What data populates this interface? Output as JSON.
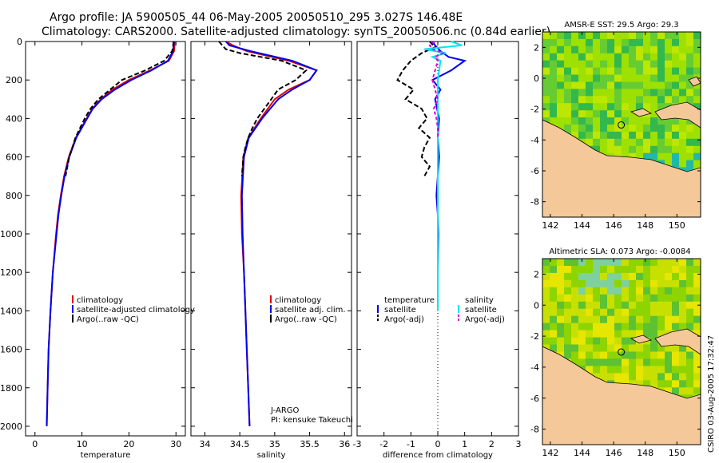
{
  "header": {
    "line1": "Argo profile: JA 5900505_44 06-May-2005 20050510_295 3.027S 146.48E",
    "line2": "Climatology: CARS2000. Satellite-adjusted climatology: synTS_20050506.nc (0.84d earlier)"
  },
  "colors": {
    "climatology": "#e00000",
    "satellite": "#0000ee",
    "argo": "#000000",
    "sal_satellite": "#00e5ee",
    "sal_argo": "#e000e0"
  },
  "chart_data": [
    {
      "type": "line",
      "id": "temperature-profile",
      "xlabel": "temperature",
      "ylabel": "",
      "xlim": [
        -2,
        32
      ],
      "ylim": [
        2050,
        0
      ],
      "xticks": [
        "0",
        "10",
        "20",
        "30"
      ],
      "yticks": [
        "0",
        "200",
        "400",
        "600",
        "800",
        "1000",
        "1200",
        "1400",
        "1600",
        "1800",
        "2000"
      ],
      "legend": [
        "climatology",
        "satellite-adjusted climatology",
        "Argo(..raw -QC)"
      ],
      "series": [
        {
          "name": "climatology",
          "depth": [
            0,
            20,
            50,
            100,
            150,
            200,
            250,
            300,
            350,
            400,
            500,
            600,
            700,
            800,
            900,
            1000,
            1200,
            1400,
            1600,
            1800,
            2000
          ],
          "values": [
            29.8,
            29.7,
            29.6,
            28.5,
            24.5,
            20,
            16.5,
            14,
            12.2,
            11,
            8.7,
            7.2,
            6.2,
            5.5,
            4.9,
            4.5,
            3.8,
            3.3,
            2.9,
            2.7,
            2.5
          ]
        },
        {
          "name": "satellite-adjusted climatology",
          "depth": [
            0,
            20,
            50,
            100,
            150,
            200,
            250,
            300,
            350,
            400,
            500,
            600,
            700,
            800,
            900,
            1000,
            1200,
            1400,
            1600,
            1800,
            2000
          ],
          "values": [
            29.6,
            29.5,
            29.4,
            28.3,
            24.8,
            20.5,
            17,
            14.2,
            12.3,
            11.1,
            8.8,
            7.3,
            6.3,
            5.6,
            5,
            4.6,
            3.8,
            3.3,
            2.9,
            2.7,
            2.5
          ]
        },
        {
          "name": "Argo(..raw -QC)",
          "depth": [
            0,
            20,
            50,
            100,
            150,
            200,
            250,
            300,
            350,
            400,
            450,
            500,
            550,
            600,
            650,
            700
          ],
          "values": [
            29.5,
            29.4,
            29.2,
            27.5,
            23.5,
            18.5,
            16,
            13.5,
            11.8,
            10.6,
            9.6,
            8.6,
            8,
            7.3,
            6.9,
            6.5
          ]
        }
      ]
    },
    {
      "type": "line",
      "id": "salinity-profile",
      "xlabel": "salinity",
      "xlim": [
        33.8,
        36.1
      ],
      "ylim": [
        2050,
        0
      ],
      "xticks": [
        "34",
        "34.5",
        "35",
        "35.5",
        "36"
      ],
      "legend": [
        "climatology",
        "satellite adj. clim.",
        "Argo(..raw -QC)"
      ],
      "annotation": [
        "J-ARGO",
        "PI: kensuke Takeuchi"
      ],
      "series": [
        {
          "name": "climatology",
          "depth": [
            0,
            20,
            50,
            100,
            150,
            200,
            250,
            300,
            400,
            500,
            600,
            800,
            1000,
            1200,
            1400,
            1600,
            1800,
            2000
          ],
          "values": [
            34.3,
            34.4,
            34.6,
            35.2,
            35.6,
            35.5,
            35.2,
            35,
            34.8,
            34.62,
            34.55,
            34.52,
            34.53,
            34.56,
            34.58,
            34.6,
            34.62,
            34.64
          ]
        },
        {
          "name": "satellite adj. clim.",
          "depth": [
            0,
            20,
            50,
            100,
            150,
            200,
            250,
            300,
            400,
            500,
            600,
            800,
            1000,
            1200,
            1400,
            1600,
            1800,
            2000
          ],
          "values": [
            34.3,
            34.35,
            34.65,
            35.25,
            35.6,
            35.5,
            35.25,
            35.05,
            34.82,
            34.63,
            34.56,
            34.53,
            34.54,
            34.56,
            34.58,
            34.6,
            34.62,
            34.64
          ]
        },
        {
          "name": "Argo(..raw -QC)",
          "depth": [
            0,
            20,
            40,
            60,
            100,
            150,
            200,
            250,
            300,
            350,
            400,
            450,
            500,
            550,
            600,
            650,
            700
          ],
          "values": [
            34.2,
            34.25,
            34.3,
            34.5,
            35.1,
            35.45,
            35.3,
            35.05,
            34.95,
            34.85,
            34.75,
            34.68,
            34.62,
            34.58,
            34.55,
            34.54,
            34.53
          ]
        }
      ]
    },
    {
      "type": "line",
      "id": "difference-profile",
      "xlabel": "difference from climatology",
      "xlim": [
        -3,
        3
      ],
      "ylim": [
        2050,
        0
      ],
      "xticks": [
        "-3",
        "-2",
        "-1",
        "0",
        "1",
        "2",
        "3"
      ],
      "legend_left": [
        "temperature",
        "satellite",
        "Argo(-adj)"
      ],
      "legend_right": [
        "salinity",
        "satellite",
        "Argo(-adj)"
      ],
      "series": [
        {
          "name": "temperature satellite",
          "depth": [
            0,
            20,
            50,
            80,
            100,
            150,
            200,
            250,
            300,
            400,
            500,
            600,
            700,
            800,
            900,
            1000,
            1200,
            1400
          ],
          "values": [
            -0.2,
            -0.1,
            0.1,
            0.4,
            1.0,
            0.5,
            -0.2,
            0.1,
            -0.1,
            0.05,
            0,
            0.05,
            0,
            -0.05,
            0,
            0.02,
            0,
            0
          ]
        },
        {
          "name": "temperature Argo(-adj)",
          "depth": [
            0,
            30,
            60,
            100,
            150,
            200,
            250,
            300,
            350,
            400,
            450,
            500,
            550,
            600,
            650,
            700
          ],
          "values": [
            -0.3,
            -0.1,
            -0.6,
            -1.0,
            -1.3,
            -1.5,
            -0.9,
            -1.2,
            -0.6,
            -0.4,
            -0.7,
            -0.3,
            -0.5,
            -0.6,
            -0.3,
            -0.5
          ]
        },
        {
          "name": "salinity satellite",
          "depth": [
            0,
            20,
            40,
            60,
            80,
            100,
            150,
            200,
            300,
            400,
            500,
            600,
            800,
            1000,
            1200,
            1400
          ],
          "values": [
            0.5,
            0.9,
            -0.5,
            0.3,
            -0.2,
            0.1,
            0.05,
            0,
            0,
            0,
            0,
            0,
            0,
            0,
            0,
            0
          ]
        },
        {
          "name": "salinity Argo(-adj)",
          "depth": [
            0,
            20,
            40,
            60,
            80,
            100,
            150,
            200,
            250,
            300,
            350,
            400,
            450,
            500
          ],
          "values": [
            -0.1,
            -0.3,
            -0.2,
            0.2,
            -0.1,
            0,
            -0.1,
            -0.2,
            -0.1,
            0,
            -0.15,
            -0.05,
            0,
            0
          ]
        }
      ]
    },
    {
      "type": "heatmap",
      "id": "sst-map",
      "title": "AMSR-E SST: 29.5 Argo: 29.3",
      "xticks": [
        "142",
        "144",
        "146",
        "148",
        "150"
      ],
      "yticks": [
        "2",
        "0",
        "-2",
        "-4",
        "-6",
        "-8"
      ],
      "xlim": [
        141.5,
        151.5
      ],
      "ylim": [
        -9,
        3
      ],
      "marker": [
        146.48,
        -3.027
      ]
    },
    {
      "type": "heatmap",
      "id": "sla-map",
      "title": "Altimetric SLA: 0.073 Argo: -0.0084",
      "xticks": [
        "142",
        "144",
        "146",
        "148",
        "150"
      ],
      "yticks": [
        "2",
        "0",
        "-2",
        "-4",
        "-6",
        "-8"
      ],
      "xlim": [
        141.5,
        151.5
      ],
      "ylim": [
        -9,
        3
      ],
      "marker": [
        146.48,
        -3.027
      ]
    }
  ],
  "footer": {
    "stamp": "CSIRO 03-Aug-2005 17:32:47"
  }
}
